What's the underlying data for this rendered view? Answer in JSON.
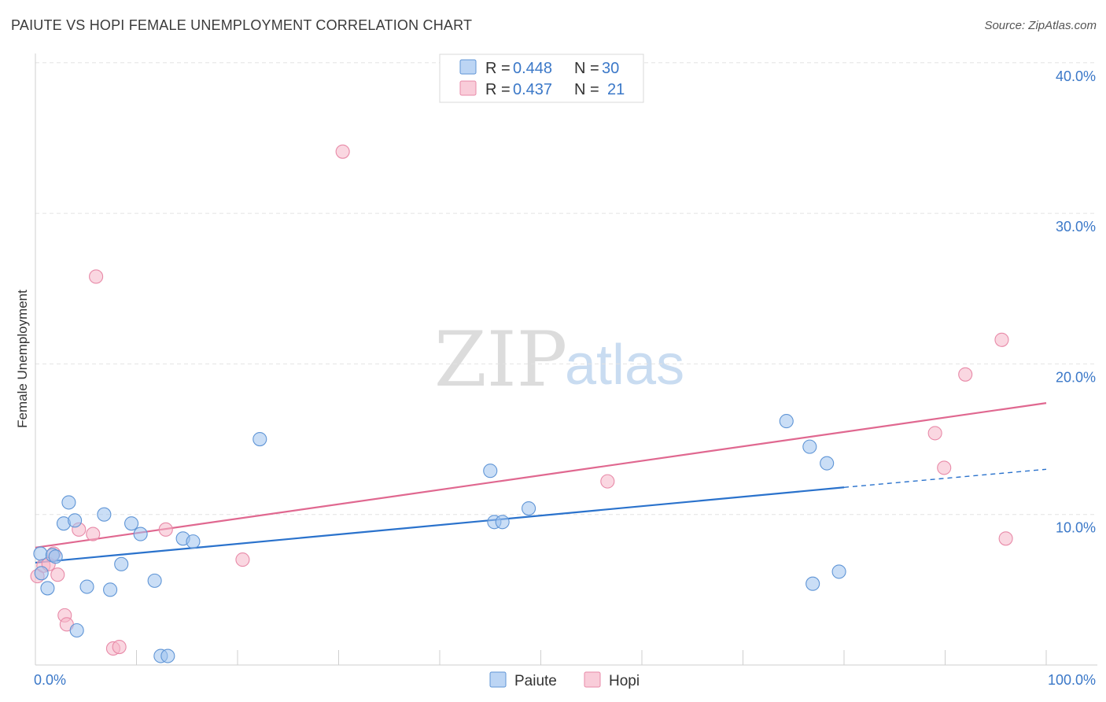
{
  "title": "PAIUTE VS HOPI FEMALE UNEMPLOYMENT CORRELATION CHART",
  "source": "Source: ZipAtlas.com",
  "watermark": {
    "zip": "ZIP",
    "atlas": "atlas"
  },
  "colors": {
    "paiute": "#9fc3ef",
    "paiute_stroke": "#5f95d6",
    "paiute_line": "#2a72cc",
    "hopi": "#f6b6c9",
    "hopi_stroke": "#e88aa8",
    "hopi_line": "#e06890"
  },
  "legend": {
    "paiute": {
      "r_label": "R = ",
      "r_value": "0.448",
      "n_label": "N = ",
      "n_value": "30"
    },
    "hopi": {
      "r_label": "R = ",
      "r_value": "0.437",
      "n_label": "N = ",
      "n_value": "21"
    }
  },
  "chart_data": {
    "type": "scatter",
    "title": "PAIUTE VS HOPI FEMALE UNEMPLOYMENT CORRELATION CHART",
    "xlabel": "",
    "ylabel": "Female Unemployment",
    "xlim": [
      0,
      100
    ],
    "ylim": [
      0,
      40
    ],
    "x_tick_labels": [
      "0.0%",
      "100.0%"
    ],
    "y_ticks": [
      10,
      20,
      30,
      40
    ],
    "y_tick_labels": [
      "10.0%",
      "20.0%",
      "30.0%",
      "40.0%"
    ],
    "series": [
      {
        "name": "Paiute",
        "points": [
          [
            0.5,
            7.4
          ],
          [
            0.6,
            6.1
          ],
          [
            1.2,
            5.1
          ],
          [
            1.7,
            7.3
          ],
          [
            2.0,
            7.2
          ],
          [
            2.8,
            9.4
          ],
          [
            3.3,
            10.8
          ],
          [
            3.9,
            9.6
          ],
          [
            4.1,
            2.3
          ],
          [
            5.1,
            5.2
          ],
          [
            6.8,
            10.0
          ],
          [
            7.4,
            5.0
          ],
          [
            8.5,
            6.7
          ],
          [
            9.5,
            9.4
          ],
          [
            10.4,
            8.7
          ],
          [
            11.8,
            5.6
          ],
          [
            12.4,
            0.6
          ],
          [
            13.1,
            0.6
          ],
          [
            14.6,
            8.4
          ],
          [
            15.6,
            8.2
          ],
          [
            22.2,
            15.0
          ],
          [
            45.0,
            12.9
          ],
          [
            45.4,
            9.5
          ],
          [
            46.2,
            9.5
          ],
          [
            48.8,
            10.4
          ],
          [
            74.3,
            16.2
          ],
          [
            76.6,
            14.5
          ],
          [
            76.9,
            5.4
          ],
          [
            78.3,
            13.4
          ],
          [
            79.5,
            6.2
          ]
        ],
        "trend": {
          "x0": 0,
          "y0": 6.8,
          "x1": 80,
          "y1": 11.8,
          "dash_to_x": 100,
          "dash_to_y": 13.0
        }
      },
      {
        "name": "Hopi",
        "points": [
          [
            0.2,
            5.9
          ],
          [
            0.8,
            6.6
          ],
          [
            1.3,
            6.7
          ],
          [
            1.8,
            7.4
          ],
          [
            2.2,
            6.0
          ],
          [
            2.9,
            3.3
          ],
          [
            3.1,
            2.7
          ],
          [
            4.3,
            9.0
          ],
          [
            5.7,
            8.7
          ],
          [
            6.0,
            25.8
          ],
          [
            7.7,
            1.1
          ],
          [
            8.3,
            1.2
          ],
          [
            12.9,
            9.0
          ],
          [
            20.5,
            7.0
          ],
          [
            30.4,
            34.1
          ],
          [
            56.6,
            12.2
          ],
          [
            89.0,
            15.4
          ],
          [
            89.9,
            13.1
          ],
          [
            92.0,
            19.3
          ],
          [
            95.6,
            21.6
          ],
          [
            96.0,
            8.4
          ]
        ],
        "trend": {
          "x0": 0,
          "y0": 7.8,
          "x1": 100,
          "y1": 17.4
        }
      }
    ],
    "legend": [
      "Paiute",
      "Hopi"
    ],
    "grid": true
  }
}
